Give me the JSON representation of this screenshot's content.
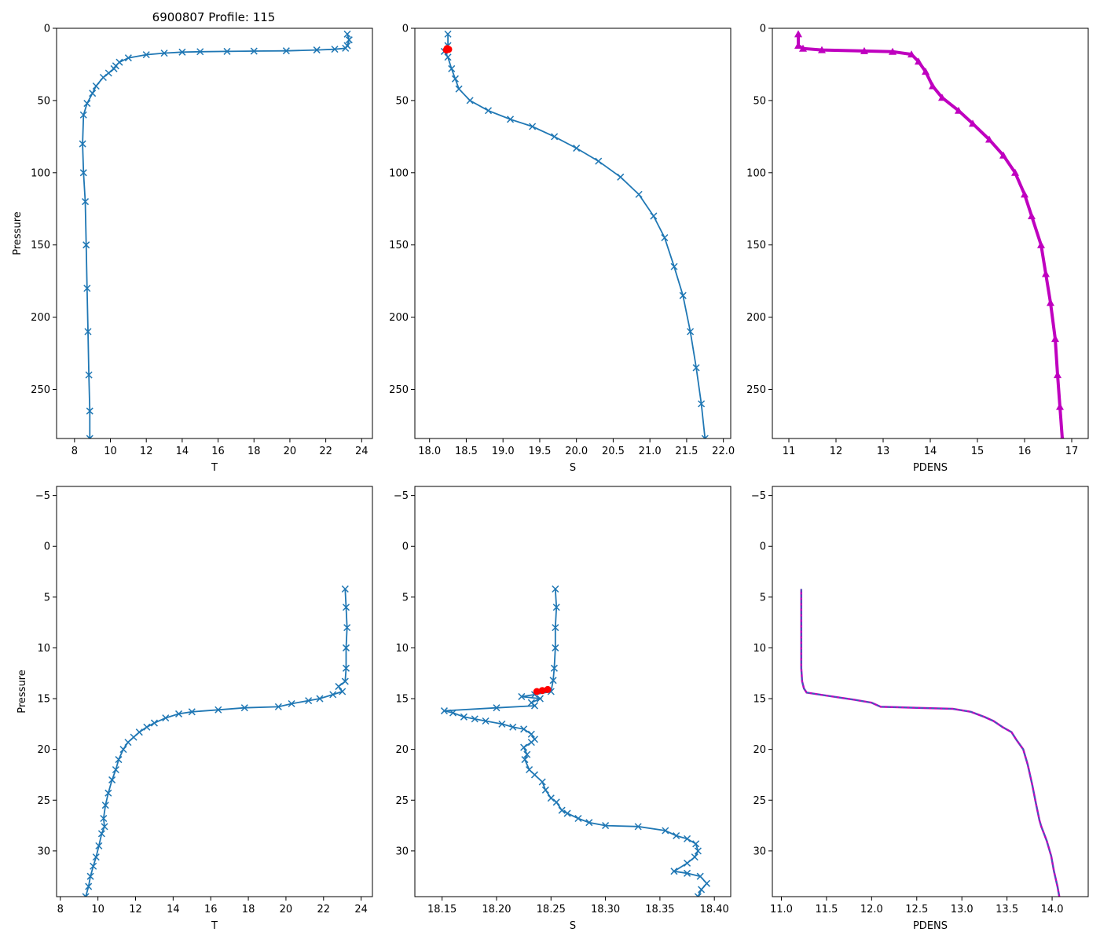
{
  "figure_title": "6900807 Profile: 115",
  "colors": {
    "series_blue": "#1f77b4",
    "flag_red": "#ff0000",
    "magenta": "#bf00bf",
    "dashed_blue": "#1f77b4"
  },
  "chart_data": [
    {
      "id": "top-left",
      "type": "line",
      "marker": "x",
      "xlabel": "T",
      "ylabel": "Pressure",
      "title": "6900807 Profile: 115",
      "xlim": [
        7.0,
        24.6
      ],
      "ylim": [
        284,
        0
      ],
      "xticks": [
        8,
        10,
        12,
        14,
        16,
        18,
        20,
        22,
        24
      ],
      "yticks": [
        0,
        50,
        100,
        150,
        200,
        250
      ],
      "series": [
        {
          "name": "T",
          "color": "#1f77b4",
          "points": [
            [
              23.2,
              4
            ],
            [
              23.3,
              8
            ],
            [
              23.2,
              12
            ],
            [
              23.1,
              13.8
            ],
            [
              22.5,
              14.5
            ],
            [
              21.5,
              15
            ],
            [
              19.8,
              15.6
            ],
            [
              18,
              15.8
            ],
            [
              16.5,
              16
            ],
            [
              15,
              16.2
            ],
            [
              14,
              16.5
            ],
            [
              13,
              17.2
            ],
            [
              12,
              18.3
            ],
            [
              11,
              20.5
            ],
            [
              10.5,
              23.5
            ],
            [
              10.3,
              26
            ],
            [
              10.2,
              28
            ],
            [
              9.9,
              31
            ],
            [
              9.6,
              34
            ],
            [
              9.2,
              40
            ],
            [
              9,
              45
            ],
            [
              8.7,
              52
            ],
            [
              8.5,
              60
            ],
            [
              8.45,
              80
            ],
            [
              8.5,
              100
            ],
            [
              8.6,
              120
            ],
            [
              8.65,
              150
            ],
            [
              8.7,
              180
            ],
            [
              8.75,
              210
            ],
            [
              8.8,
              240
            ],
            [
              8.85,
              265
            ],
            [
              8.85,
              284
            ]
          ]
        }
      ]
    },
    {
      "id": "top-middle",
      "type": "line",
      "marker": "x",
      "xlabel": "S",
      "ylabel": "",
      "xlim": [
        17.8,
        22.1
      ],
      "ylim": [
        284,
        0
      ],
      "xticks": [
        18.0,
        18.5,
        19.0,
        19.5,
        20.0,
        20.5,
        21.0,
        21.5,
        22.0
      ],
      "yticks": [
        0,
        50,
        100,
        150,
        200,
        250
      ],
      "series": [
        {
          "name": "S",
          "color": "#1f77b4",
          "points": [
            [
              18.25,
              4
            ],
            [
              18.25,
              12
            ],
            [
              18.2,
              16
            ],
            [
              18.25,
              20
            ],
            [
              18.3,
              28
            ],
            [
              18.35,
              35
            ],
            [
              18.4,
              42
            ],
            [
              18.55,
              50
            ],
            [
              18.8,
              57
            ],
            [
              19.1,
              63
            ],
            [
              19.4,
              68
            ],
            [
              19.7,
              75
            ],
            [
              20.0,
              83
            ],
            [
              20.3,
              92
            ],
            [
              20.6,
              103
            ],
            [
              20.85,
              115
            ],
            [
              21.05,
              130
            ],
            [
              21.2,
              145
            ],
            [
              21.33,
              165
            ],
            [
              21.45,
              185
            ],
            [
              21.55,
              210
            ],
            [
              21.63,
              235
            ],
            [
              21.7,
              260
            ],
            [
              21.75,
              284
            ]
          ]
        }
      ],
      "flags": {
        "color": "#ff0000",
        "points": [
          [
            18.24,
            14
          ],
          [
            18.26,
            14.6
          ],
          [
            18.23,
            15
          ]
        ]
      }
    },
    {
      "id": "top-right",
      "type": "line",
      "marker": "^",
      "xlabel": "PDENS",
      "ylabel": "",
      "xlim": [
        10.65,
        17.35
      ],
      "ylim": [
        284,
        0
      ],
      "xticks": [
        11,
        12,
        13,
        14,
        15,
        16,
        17
      ],
      "yticks": [
        0,
        50,
        100,
        150,
        200,
        250
      ],
      "series": [
        {
          "name": "PDENS",
          "color": "#bf00bf",
          "points": [
            [
              11.2,
              4
            ],
            [
              11.2,
              12
            ],
            [
              11.3,
              14
            ],
            [
              11.7,
              15
            ],
            [
              12.6,
              15.7
            ],
            [
              13.2,
              16.2
            ],
            [
              13.6,
              18
            ],
            [
              13.75,
              23
            ],
            [
              13.9,
              30
            ],
            [
              14.05,
              40
            ],
            [
              14.25,
              48
            ],
            [
              14.6,
              57
            ],
            [
              14.9,
              66
            ],
            [
              15.25,
              77
            ],
            [
              15.55,
              88
            ],
            [
              15.8,
              100
            ],
            [
              16.0,
              115
            ],
            [
              16.15,
              130
            ],
            [
              16.35,
              150
            ],
            [
              16.45,
              170
            ],
            [
              16.55,
              190
            ],
            [
              16.65,
              215
            ],
            [
              16.7,
              240
            ],
            [
              16.75,
              262
            ],
            [
              16.8,
              284
            ]
          ]
        }
      ]
    },
    {
      "id": "bottom-left",
      "type": "line",
      "marker": "x",
      "xlabel": "T",
      "ylabel": "Pressure",
      "xlim": [
        7.8,
        24.6
      ],
      "ylim": [
        34.5,
        -5.9
      ],
      "xticks": [
        8,
        10,
        12,
        14,
        16,
        18,
        20,
        22,
        24
      ],
      "yticks": [
        -5,
        0,
        5,
        10,
        15,
        20,
        25,
        30
      ],
      "series": [
        {
          "name": "T",
          "color": "#1f77b4",
          "points": [
            [
              23.15,
              4.2
            ],
            [
              23.2,
              6
            ],
            [
              23.25,
              8
            ],
            [
              23.2,
              10
            ],
            [
              23.2,
              12
            ],
            [
              23.15,
              13.3
            ],
            [
              22.8,
              13.8
            ],
            [
              23.0,
              14.3
            ],
            [
              22.5,
              14.6
            ],
            [
              21.8,
              15
            ],
            [
              21.2,
              15.2
            ],
            [
              20.3,
              15.5
            ],
            [
              19.6,
              15.8
            ],
            [
              17.8,
              15.9
            ],
            [
              16.4,
              16.1
            ],
            [
              15.0,
              16.3
            ],
            [
              14.3,
              16.5
            ],
            [
              13.6,
              16.9
            ],
            [
              13.0,
              17.4
            ],
            [
              12.6,
              17.8
            ],
            [
              12.2,
              18.3
            ],
            [
              11.9,
              18.8
            ],
            [
              11.6,
              19.3
            ],
            [
              11.35,
              20.0
            ],
            [
              11.1,
              21.0
            ],
            [
              10.95,
              22.0
            ],
            [
              10.75,
              23.0
            ],
            [
              10.55,
              24.3
            ],
            [
              10.4,
              25.5
            ],
            [
              10.3,
              26.8
            ],
            [
              10.35,
              27.6
            ],
            [
              10.2,
              28.3
            ],
            [
              10.05,
              29.5
            ],
            [
              9.9,
              30.6
            ],
            [
              9.75,
              31.5
            ],
            [
              9.6,
              32.5
            ],
            [
              9.5,
              33.5
            ],
            [
              9.35,
              34.5
            ]
          ]
        }
      ]
    },
    {
      "id": "bottom-middle",
      "type": "line",
      "marker": "x",
      "xlabel": "S",
      "ylabel": "",
      "xlim": [
        18.125,
        18.415
      ],
      "ylim": [
        34.5,
        -5.9
      ],
      "xticks": [
        18.15,
        18.2,
        18.25,
        18.3,
        18.35,
        18.4
      ],
      "yticks": [
        -5,
        0,
        5,
        10,
        15,
        20,
        25,
        30
      ],
      "series": [
        {
          "name": "S",
          "color": "#1f77b4",
          "points": [
            [
              18.254,
              4.2
            ],
            [
              18.255,
              6
            ],
            [
              18.254,
              8
            ],
            [
              18.254,
              10
            ],
            [
              18.253,
              12
            ],
            [
              18.252,
              13.2
            ],
            [
              18.25,
              14.3
            ],
            [
              18.235,
              14.6
            ],
            [
              18.223,
              14.8
            ],
            [
              18.24,
              15.0
            ],
            [
              18.232,
              15.4
            ],
            [
              18.235,
              15.7
            ],
            [
              18.2,
              15.9
            ],
            [
              18.152,
              16.2
            ],
            [
              18.16,
              16.4
            ],
            [
              18.17,
              16.8
            ],
            [
              18.18,
              17.0
            ],
            [
              18.19,
              17.2
            ],
            [
              18.205,
              17.5
            ],
            [
              18.215,
              17.8
            ],
            [
              18.225,
              18.0
            ],
            [
              18.232,
              18.5
            ],
            [
              18.235,
              19.0
            ],
            [
              18.232,
              19.3
            ],
            [
              18.225,
              19.8
            ],
            [
              18.228,
              20.5
            ],
            [
              18.226,
              21.0
            ],
            [
              18.23,
              22.0
            ],
            [
              18.235,
              22.5
            ],
            [
              18.242,
              23.2
            ],
            [
              18.245,
              24.0
            ],
            [
              18.25,
              24.8
            ],
            [
              18.255,
              25.2
            ],
            [
              18.26,
              26.0
            ],
            [
              18.265,
              26.3
            ],
            [
              18.275,
              26.8
            ],
            [
              18.285,
              27.2
            ],
            [
              18.3,
              27.5
            ],
            [
              18.33,
              27.6
            ],
            [
              18.355,
              28.0
            ],
            [
              18.365,
              28.5
            ],
            [
              18.375,
              28.8
            ],
            [
              18.383,
              29.3
            ],
            [
              18.385,
              30.0
            ],
            [
              18.382,
              30.6
            ],
            [
              18.375,
              31.2
            ],
            [
              18.363,
              32.0
            ],
            [
              18.375,
              32.2
            ],
            [
              18.387,
              32.5
            ],
            [
              18.393,
              33.2
            ],
            [
              18.388,
              33.8
            ],
            [
              18.385,
              34.5
            ]
          ]
        }
      ],
      "flags": {
        "color": "#ff0000",
        "points": [
          [
            18.237,
            14.3
          ],
          [
            18.242,
            14.2
          ],
          [
            18.247,
            14.1
          ]
        ]
      }
    },
    {
      "id": "bottom-right",
      "type": "line",
      "marker": "",
      "style": "dashed",
      "xlabel": "PDENS",
      "ylabel": "",
      "xlim": [
        10.9,
        14.4
      ],
      "ylim": [
        34.5,
        -5.9
      ],
      "xticks": [
        11.0,
        11.5,
        12.0,
        12.5,
        13.0,
        13.5,
        14.0
      ],
      "yticks": [
        -5,
        0,
        5,
        10,
        15,
        20,
        25,
        30
      ],
      "series": [
        {
          "name": "PDENS",
          "color": "#bf00bf",
          "points": [
            [
              11.22,
              4.2
            ],
            [
              11.22,
              8
            ],
            [
              11.22,
              12
            ],
            [
              11.23,
              13.3
            ],
            [
              11.25,
              14
            ],
            [
              11.28,
              14.4
            ],
            [
              11.5,
              14.7
            ],
            [
              11.8,
              15.1
            ],
            [
              12.0,
              15.4
            ],
            [
              12.1,
              15.8
            ],
            [
              12.5,
              15.9
            ],
            [
              12.9,
              16.0
            ],
            [
              13.1,
              16.3
            ],
            [
              13.25,
              16.8
            ],
            [
              13.35,
              17.2
            ],
            [
              13.45,
              17.8
            ],
            [
              13.55,
              18.3
            ],
            [
              13.6,
              19.0
            ],
            [
              13.68,
              20.0
            ],
            [
              13.73,
              21.5
            ],
            [
              13.78,
              23.5
            ],
            [
              13.82,
              25.3
            ],
            [
              13.86,
              27.0
            ],
            [
              13.88,
              27.6
            ],
            [
              13.94,
              29.0
            ],
            [
              13.99,
              30.5
            ],
            [
              14.02,
              32.0
            ],
            [
              14.06,
              33.5
            ],
            [
              14.08,
              34.5
            ]
          ]
        }
      ]
    }
  ]
}
